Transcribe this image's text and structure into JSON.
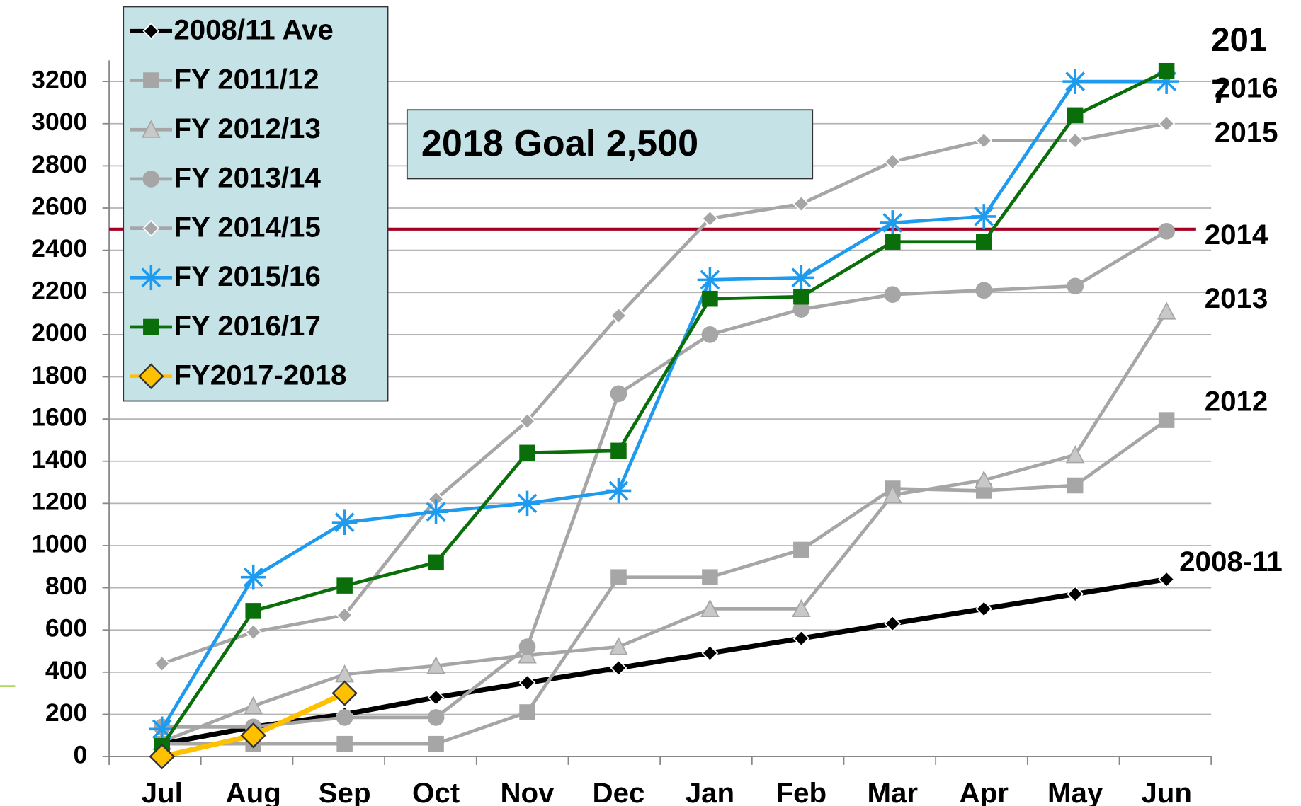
{
  "chart_data": {
    "type": "line",
    "categories": [
      "Jul",
      "Aug",
      "Sep",
      "Oct",
      "Nov",
      "Dec",
      "Jan",
      "Feb",
      "Mar",
      "Apr",
      "May",
      "Jun"
    ],
    "ylim": [
      0,
      3300
    ],
    "yticks": [
      0,
      200,
      400,
      600,
      800,
      1000,
      1200,
      1400,
      1600,
      1800,
      2000,
      2200,
      2400,
      2600,
      2800,
      3000,
      3200
    ],
    "grid": true,
    "legend": "upper left",
    "series": [
      {
        "name": "2008/11 Ave",
        "color": "#000000",
        "marker": "diamond",
        "values": [
          60,
          140,
          200,
          280,
          350,
          420,
          490,
          560,
          630,
          700,
          770,
          840
        ]
      },
      {
        "name": "FY 2011/12",
        "color": "#a6a6a6",
        "marker": "square",
        "values": [
          60,
          60,
          60,
          60,
          210,
          850,
          850,
          980,
          1270,
          1260,
          1285,
          1595
        ]
      },
      {
        "name": "FY 2012/13",
        "color": "#a6a6a6",
        "marker": "triangle",
        "values": [
          70,
          240,
          390,
          430,
          480,
          520,
          700,
          700,
          1240,
          1310,
          1430,
          2110
        ]
      },
      {
        "name": "FY 2013/14",
        "color": "#a6a6a6",
        "marker": "circle",
        "values": [
          140,
          140,
          185,
          185,
          520,
          1720,
          2000,
          2120,
          2190,
          2210,
          2230,
          2490
        ]
      },
      {
        "name": "FY 2014/15",
        "color": "#a6a6a6",
        "marker": "diamond",
        "values": [
          440,
          590,
          670,
          1220,
          1590,
          2090,
          2550,
          2620,
          2820,
          2920,
          2920,
          3000
        ]
      },
      {
        "name": "FY 2015/16",
        "color": "#1e9bef",
        "marker": "star",
        "values": [
          130,
          850,
          1110,
          1160,
          1200,
          1260,
          2260,
          2270,
          2530,
          2560,
          3200,
          3200
        ]
      },
      {
        "name": "FY 2016/17",
        "color": "#0a6e0a",
        "marker": "square",
        "values": [
          50,
          690,
          810,
          920,
          1440,
          1450,
          2170,
          2180,
          2440,
          2440,
          3040,
          3250
        ]
      },
      {
        "name": "FY2017-2018",
        "color": "#ffc000",
        "marker": "diamond",
        "values": [
          0,
          100,
          300,
          null,
          null,
          null,
          null,
          null,
          null,
          null,
          null,
          null
        ]
      }
    ],
    "goal": {
      "value": 2500,
      "label": "2018 Goal 2,500",
      "color": "#a50021"
    },
    "annotations": [
      "201",
      "7",
      "2016",
      "2015",
      "2014",
      "2013",
      "2012",
      "2008-11"
    ]
  }
}
